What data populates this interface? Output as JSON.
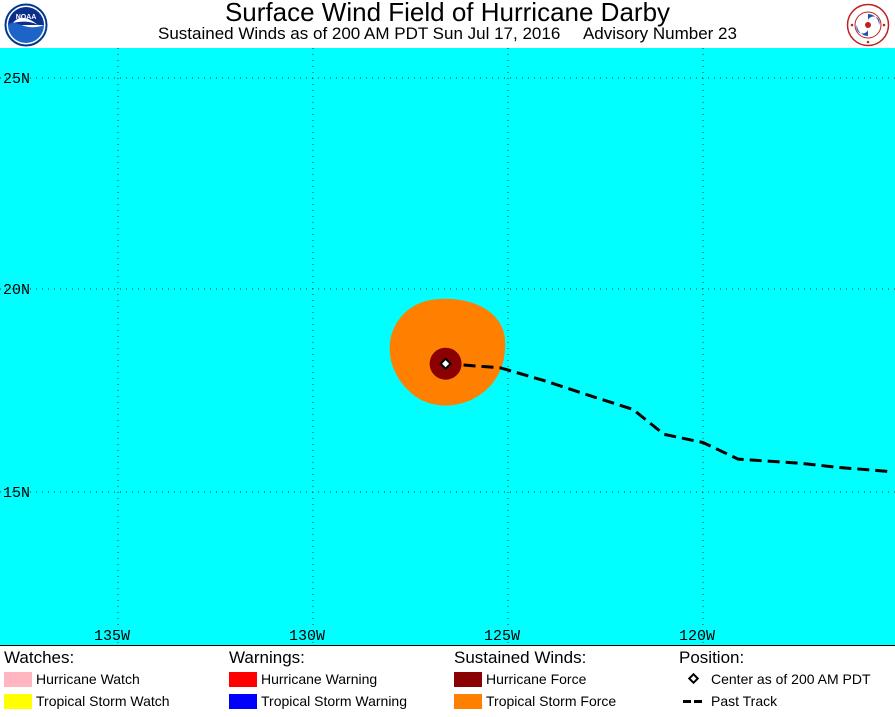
{
  "header": {
    "title": "Surface Wind Field of Hurricane Darby",
    "subtitle": "Sustained Winds as of 200 AM PDT Sun Jul 17, 2016     Advisory Number 23",
    "left_logo": "noaa-logo",
    "right_logo": "national-weather-service-logo"
  },
  "map": {
    "latitude_labels": [
      "25N",
      "20N",
      "15N"
    ],
    "longitude_labels": [
      "135W",
      "130W",
      "125W",
      "120W"
    ],
    "colors": {
      "ocean": "#00ffff",
      "tropical_storm_force": "#ff8000",
      "hurricane_force": "#8b0000",
      "track": "#000000"
    },
    "storm_center": {
      "lat": 18.2,
      "lon": 126.6
    },
    "past_track": [
      {
        "lat": 18.2,
        "lon": 126.6
      },
      {
        "lat": 18.1,
        "lon": 125.2
      },
      {
        "lat": 17.8,
        "lon": 124.1
      },
      {
        "lat": 17.4,
        "lon": 122.8
      },
      {
        "lat": 17.1,
        "lon": 121.8
      },
      {
        "lat": 16.5,
        "lon": 121.0
      },
      {
        "lat": 16.3,
        "lon": 120.0
      },
      {
        "lat": 15.9,
        "lon": 119.1
      },
      {
        "lat": 15.8,
        "lon": 117.5
      },
      {
        "lat": 15.7,
        "lon": 116.5
      },
      {
        "lat": 15.6,
        "lon": 115.2
      }
    ]
  },
  "legend": {
    "watches": {
      "heading": "Watches:",
      "items": [
        {
          "label": "Hurricane Watch",
          "color": "#ffb6c1"
        },
        {
          "label": "Tropical Storm Watch",
          "color": "#ffff00"
        }
      ]
    },
    "warnings": {
      "heading": "Warnings:",
      "items": [
        {
          "label": "Hurricane Warning",
          "color": "#ff0000"
        },
        {
          "label": "Tropical Storm Warning",
          "color": "#0000ff"
        }
      ]
    },
    "winds": {
      "heading": "Sustained Winds:",
      "items": [
        {
          "label": "Hurricane Force",
          "color": "#8b0000"
        },
        {
          "label": "Tropical Storm Force",
          "color": "#ff8000"
        }
      ]
    },
    "position": {
      "heading": "Position:",
      "items": [
        {
          "label": "Center as of 200 AM PDT",
          "icon": "diamond-icon"
        },
        {
          "label": "Past Track",
          "icon": "dashed-line-icon"
        }
      ]
    }
  }
}
